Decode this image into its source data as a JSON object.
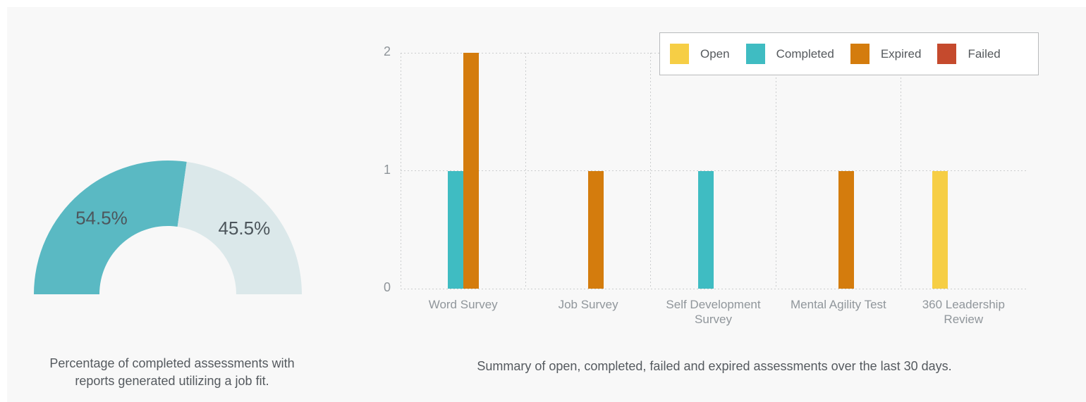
{
  "panel_background": "#f8f8f8",
  "chart_data": [
    {
      "type": "pie",
      "subtype": "half-donut-gauge",
      "labels": [
        "54.5%",
        "45.5%"
      ],
      "values": [
        54.5,
        45.5
      ],
      "colors": [
        "#5ab9c3",
        "#dbe8ea"
      ],
      "label_color": "#4d565c",
      "caption": "Percentage of completed assessments with reports generated utilizing a job fit."
    },
    {
      "type": "bar",
      "categories": [
        "Word Survey",
        "Job Survey",
        "Self Development Survey",
        "Mental Agility Test",
        "360 Leadership Review"
      ],
      "series": [
        {
          "name": "Open",
          "color": "#f6ce45",
          "values": [
            0,
            0,
            0,
            0,
            1
          ]
        },
        {
          "name": "Completed",
          "color": "#3fbcc2",
          "values": [
            1,
            0,
            1,
            0,
            0
          ]
        },
        {
          "name": "Expired",
          "color": "#d47c0d",
          "values": [
            2,
            1,
            0,
            1,
            0
          ]
        },
        {
          "name": "Failed",
          "color": "#c54a2d",
          "values": [
            0,
            0,
            0,
            0,
            0
          ]
        }
      ],
      "ylim": [
        0,
        2
      ],
      "y_ticks": [
        0,
        1,
        2
      ],
      "grid": "dashed horizontal and vertical",
      "legend_position": "top-right",
      "caption": "Summary of open, completed, failed and expired assessments over the last 30 days."
    }
  ]
}
